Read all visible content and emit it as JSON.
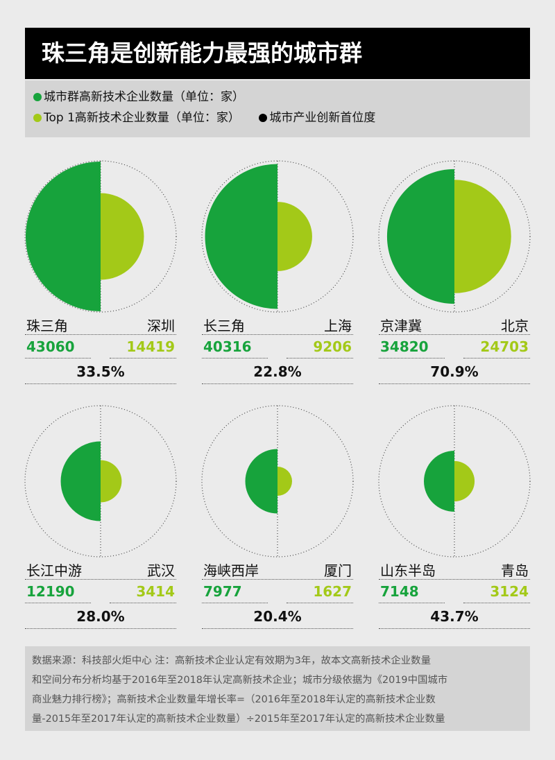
{
  "title": "珠三角是创新能力最强的城市群",
  "legend": {
    "items": [
      {
        "label": "城市群高新技术企业数量（单位：家）",
        "color": "#17a33c"
      },
      {
        "label": "Top 1高新技术企业数量（单位：家）",
        "color": "#a3c918"
      },
      {
        "label": "城市产业创新首位度",
        "color": "#000000"
      }
    ]
  },
  "chart_data": {
    "type": "semicircle-pairs",
    "title": "珠三角是创新能力最强的城市群",
    "series": [
      {
        "name": "城市群高新技术企业数量（单位：家）",
        "color": "#17a33c"
      },
      {
        "name": "Top 1高新技术企业数量（单位：家）",
        "color": "#a3c918"
      },
      {
        "name": "城市产业创新首位度",
        "color": "#000000"
      }
    ],
    "groups": [
      {
        "cluster": "珠三角",
        "cluster_value": 43060,
        "city": "深圳",
        "city_value": 14419,
        "primacy": "33.5%"
      },
      {
        "cluster": "长三角",
        "cluster_value": 40316,
        "city": "上海",
        "city_value": 9206,
        "primacy": "22.8%"
      },
      {
        "cluster": "京津冀",
        "cluster_value": 34820,
        "city": "北京",
        "city_value": 24703,
        "primacy": "70.9%"
      },
      {
        "cluster": "长江中游",
        "cluster_value": 12190,
        "city": "武汉",
        "city_value": 3414,
        "primacy": "28.0%"
      },
      {
        "cluster": "海峡西岸",
        "cluster_value": 7977,
        "city": "厦门",
        "city_value": 1627,
        "primacy": "20.4%"
      },
      {
        "cluster": "山东半岛",
        "cluster_value": 7148,
        "city": "青岛",
        "city_value": 3124,
        "primacy": "43.7%"
      }
    ]
  },
  "footer": {
    "lines": [
      "数据来源：科技部火炬中心  注：高新技术企业认定有效期为3年，故本文高新技术企业数量",
      "和空间分布分析均基于2016年至2018年认定高新技术企业；城市分级依据为《2019中国城市",
      "商业魅力排行榜》；高新技术企业数量年增长率=（2016年至2018年认定的高新技术企业数",
      "量-2015年至2017年认定的高新技术企业数量）÷2015年至2017年认定的高新技术企业数量"
    ]
  }
}
